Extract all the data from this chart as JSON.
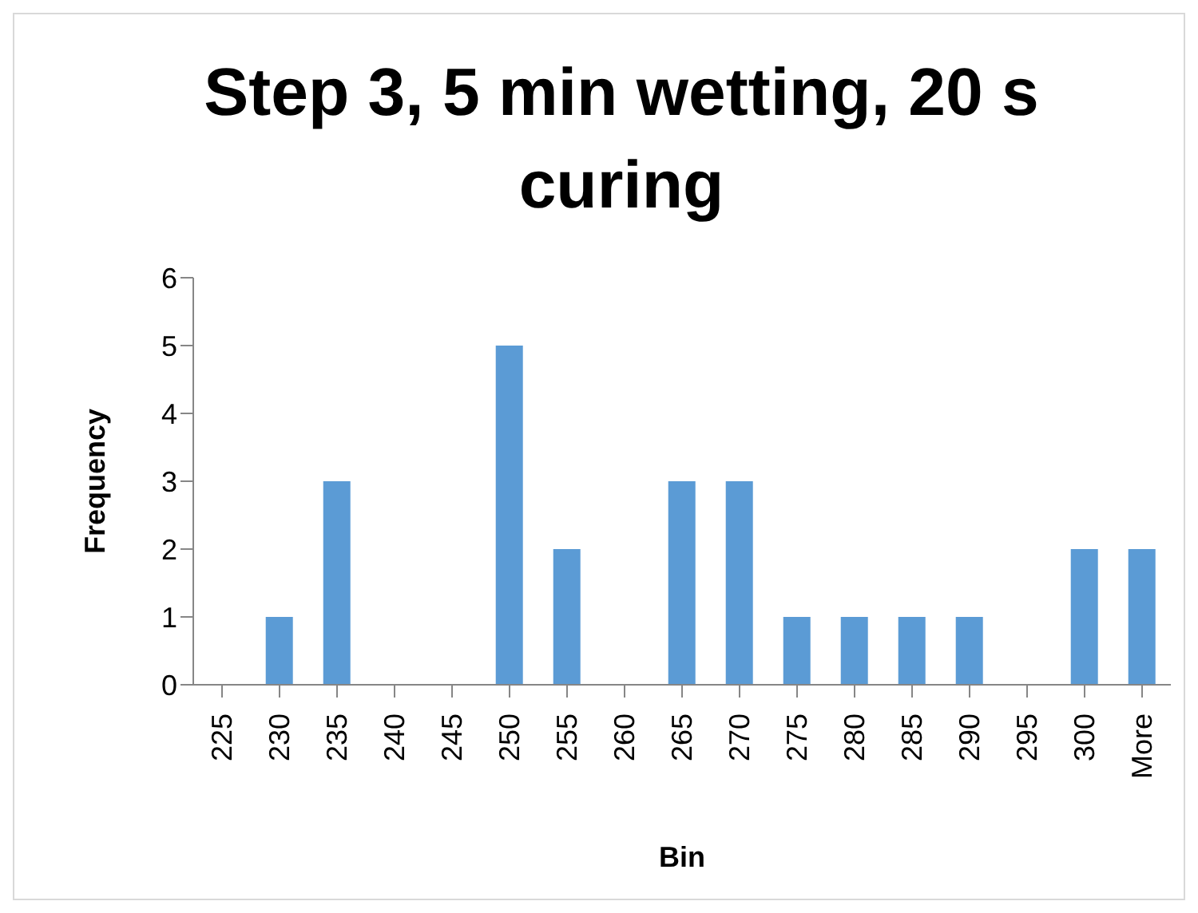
{
  "chart_data": {
    "type": "bar",
    "title": "Step 3, 5 min wetting, 20 s curing",
    "xlabel": "Bin",
    "ylabel": "Frequency",
    "categories": [
      "225",
      "230",
      "235",
      "240",
      "245",
      "250",
      "255",
      "260",
      "265",
      "270",
      "275",
      "280",
      "285",
      "290",
      "295",
      "300",
      "More"
    ],
    "values": [
      0,
      1,
      3,
      0,
      0,
      5,
      2,
      0,
      3,
      3,
      1,
      1,
      1,
      1,
      0,
      2,
      2
    ],
    "color": "#5b9bd5",
    "ylim": [
      0,
      6
    ],
    "yticks": [
      0,
      1,
      2,
      3,
      4,
      5,
      6
    ],
    "grid": false,
    "legend": false
  }
}
